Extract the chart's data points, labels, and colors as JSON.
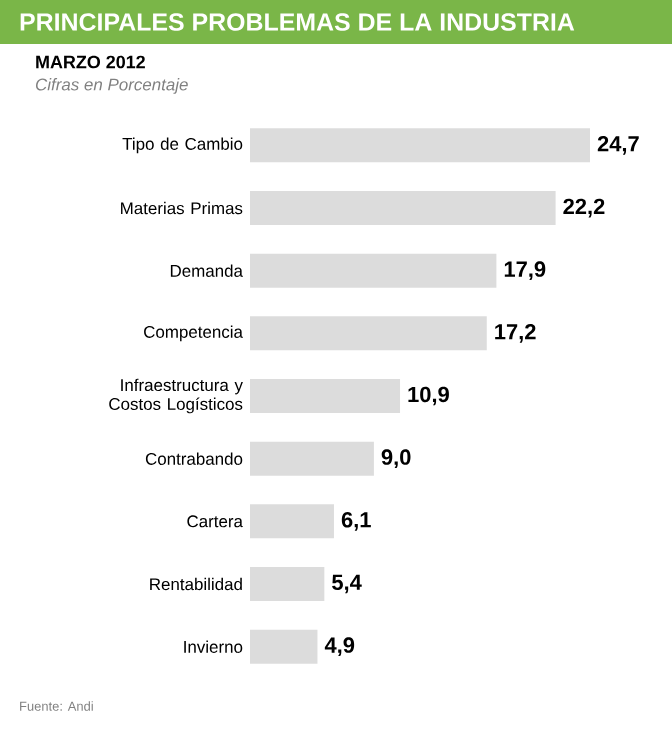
{
  "chart_data": {
    "type": "bar",
    "orientation": "horizontal",
    "title": "PRINCIPALES PROBLEMAS DE LA INDUSTRIA",
    "subtitle": "MARZO 2012",
    "categories": [
      "Tipo de Cambio",
      "Materias Primas",
      "Demanda",
      "Competencia",
      "Infraestructura y Costos Logísticos",
      "Contrabando",
      "Cartera",
      "Rentabilidad",
      "Invierno"
    ],
    "values": [
      24.7,
      22.2,
      17.9,
      17.2,
      10.9,
      9.0,
      6.1,
      5.4,
      4.9
    ],
    "value_labels": [
      "24,7",
      "22,2",
      "17,9",
      "17,2",
      "10,9",
      "9,0",
      "6,1",
      "5,4",
      "4,9"
    ],
    "color": "#dcdcdc",
    "annotations": [
      "Cifras en Porcentaje",
      "Fuente: Andi"
    ]
  }
}
